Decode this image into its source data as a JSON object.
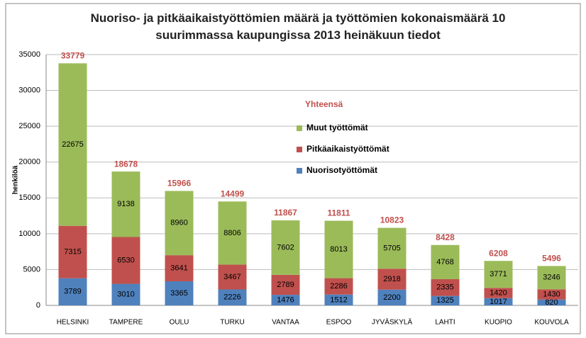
{
  "chart_data": {
    "type": "stacked_bar",
    "title": "Nuoriso- ja pitkäaikaistyöttömien määrä ja työttömien kokonaismäärä 10 suurimmassa kaupungissa 2013 heinäkuun tiedot",
    "y_label": "henkilöä",
    "categories": [
      "HELSINKI",
      "TAMPERE",
      "OULU",
      "TURKU",
      "VANTAA",
      "ESPOO",
      "JYVÄSKYLÄ",
      "LAHTI",
      "KUOPIO",
      "KOUVOLA"
    ],
    "series": [
      {
        "name": "Nuorisotyöttömät",
        "color": "#4f81bd",
        "values": [
          3789,
          3010,
          3365,
          2226,
          1476,
          1512,
          2200,
          1325,
          1017,
          820
        ]
      },
      {
        "name": "Pitkäaikaistyöttömät",
        "color": "#c0504d",
        "values": [
          7315,
          6530,
          3641,
          3467,
          2789,
          2286,
          2918,
          2335,
          1420,
          1430
        ]
      },
      {
        "name": "Muut työttömät",
        "color": "#9bbb59",
        "values": [
          22675,
          9138,
          8960,
          8806,
          7602,
          8013,
          5705,
          4768,
          3771,
          3246
        ]
      }
    ],
    "totals": {
      "name": "Yhteensä",
      "color": "#c0504d",
      "values": [
        33779,
        18678,
        15966,
        14499,
        11867,
        11811,
        10823,
        8428,
        6208,
        5496
      ]
    },
    "ylim": [
      0,
      35000
    ],
    "yticks": [
      0,
      5000,
      10000,
      15000,
      20000,
      25000,
      30000,
      35000
    ],
    "grid": true
  }
}
